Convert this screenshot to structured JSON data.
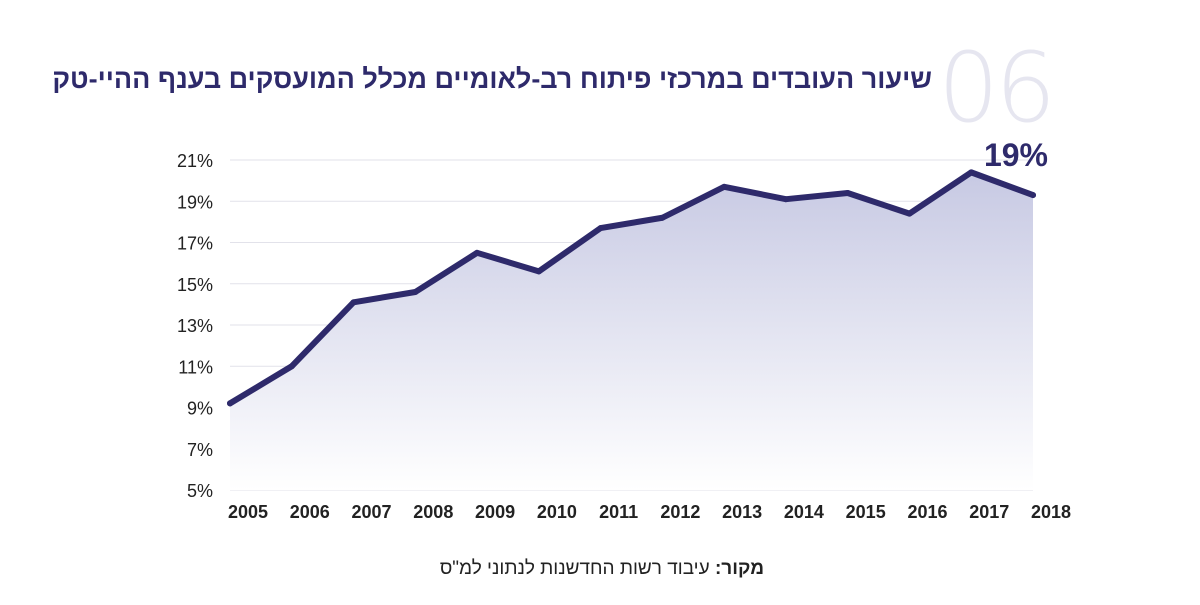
{
  "figure_number": "06",
  "source": {
    "label": "מקור:",
    "text": "עיבוד רשות החדשנות לנתוני למ\"ס"
  },
  "colors": {
    "line": "#2e2a6b",
    "fill_top": "#c7c9e3",
    "grid": "#e2e2ea"
  },
  "chart_data": {
    "type": "area",
    "title": "שיעור העובדים במרכזי פיתוח רב-לאומיים מכלל המועסקים בענף ההיי-טק",
    "x": [
      "2005",
      "2006",
      "2007",
      "2008",
      "2009",
      "2010",
      "2011",
      "2012",
      "2013",
      "2014",
      "2015",
      "2016",
      "2017",
      "2018"
    ],
    "values": [
      9.2,
      11.0,
      14.1,
      14.6,
      16.5,
      15.6,
      17.7,
      18.2,
      19.7,
      19.1,
      19.4,
      18.4,
      20.4,
      19.3
    ],
    "ylim": [
      5,
      21
    ],
    "yticks": [
      "5%",
      "7%",
      "9%",
      "11%",
      "13%",
      "15%",
      "17%",
      "19%",
      "21%"
    ],
    "grid": true,
    "annotation": "19%"
  }
}
